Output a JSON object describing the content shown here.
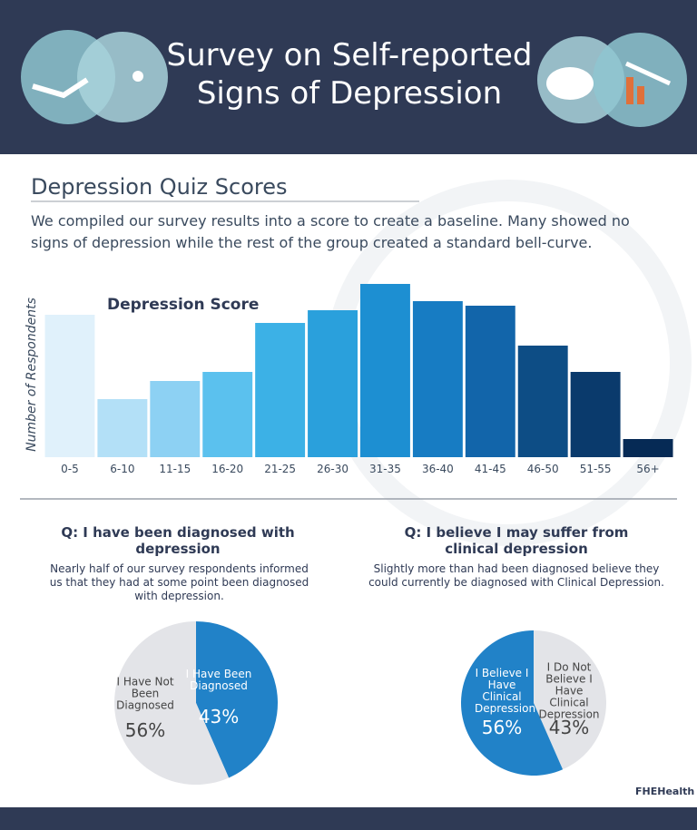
{
  "header": {
    "title": "Survey on Self-reported Signs of Depression"
  },
  "section": {
    "heading": "Depression Quiz Scores",
    "description": "We compiled our survey results into a score to create a baseline. Many showed no signs of depression while the rest of the group created a standard bell-curve."
  },
  "logo": "FHEHealth",
  "chart_data": [
    {
      "type": "bar",
      "title": "Depression Score",
      "y_label": "Number of Respondents",
      "categories": [
        "0-5",
        "6-10",
        "11-15",
        "16-20",
        "21-25",
        "26-30",
        "31-35",
        "36-40",
        "41-45",
        "46-50",
        "51-55",
        "56+"
      ],
      "values": [
        157,
        64,
        84,
        94,
        148,
        162,
        191,
        172,
        167,
        123,
        94,
        20
      ],
      "colors": [
        "#e0f1fb",
        "#b3e0f7",
        "#8dd1f3",
        "#5bc1ee",
        "#3cb1e6",
        "#2aa0dc",
        "#1d8fd2",
        "#177cc3",
        "#1265aa",
        "#0d4d85",
        "#0a3a6c",
        "#062a55"
      ],
      "ylim": [
        0,
        200
      ]
    },
    {
      "type": "pie",
      "title": "Q: I have been diagnosed with depression",
      "description": "Nearly half of our survey respondents informed us that they had at some point been diagnosed with depression.",
      "categories": [
        "I Have Been Diagnosed",
        "I Have Not Been Diagnosed"
      ],
      "values": [
        43,
        56
      ],
      "value_labels": [
        "43%",
        "56%"
      ],
      "colors": [
        "#2182c8",
        "#e3e4e8"
      ]
    },
    {
      "type": "pie",
      "title": "Q: I believe I may suffer from clinical depression",
      "description": "Slightly more than had been diagnosed believe they could currently be diagnosed with Clinical Depression.",
      "categories": [
        "I Do Not Believe I Have Clinical Depression",
        "I Believe I Have Clinical Depression"
      ],
      "values": [
        43,
        56
      ],
      "value_labels": [
        "43%",
        "56%"
      ],
      "colors": [
        "#e3e4e8",
        "#2182c8"
      ]
    }
  ]
}
